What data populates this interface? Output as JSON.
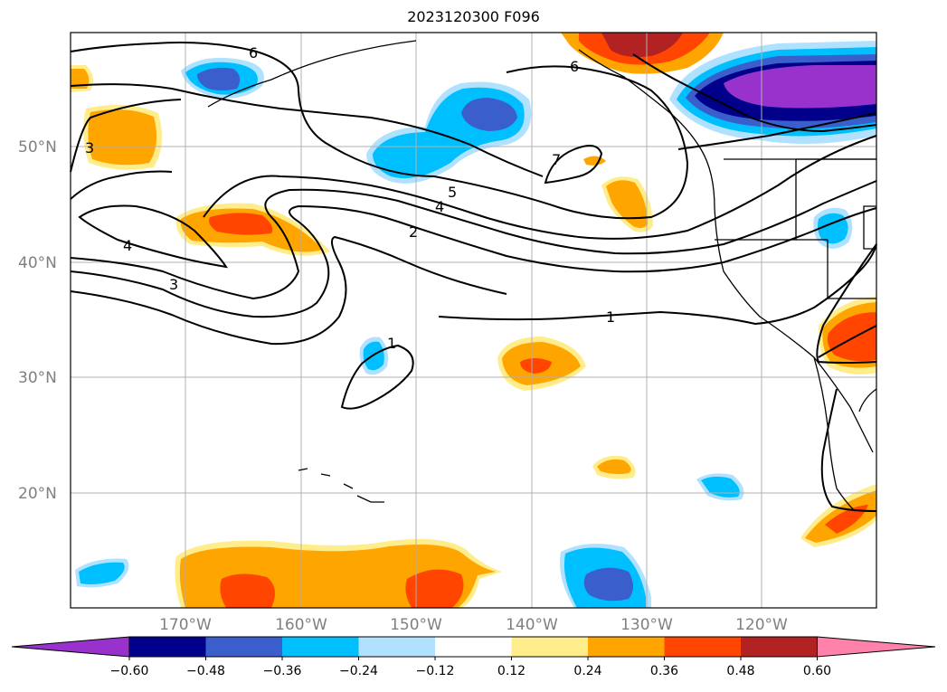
{
  "title": "2023120300 F096",
  "lat_labels": [
    "50°N",
    "40°N",
    "30°N",
    "20°N"
  ],
  "lon_labels": [
    "170°W",
    "160°W",
    "150°W",
    "140°W",
    "130°W",
    "120°W"
  ],
  "colorbar": {
    "ticks": [
      "−0.60",
      "−0.48",
      "−0.36",
      "−0.24",
      "−0.12",
      "0.12",
      "0.24",
      "0.36",
      "0.48",
      "0.60"
    ],
    "colors": [
      "#9932cc",
      "#00008b",
      "#3a5fcd",
      "#00bfff",
      "#b0e2ff",
      "#ffffff",
      "#ffec8b",
      "#ffa500",
      "#ff4500",
      "#b22222",
      "#ff82ab"
    ]
  },
  "contour_labels": [
    "6",
    "6",
    "3",
    "7",
    "5",
    "4",
    "4",
    "2",
    "3",
    "1",
    "1"
  ]
}
